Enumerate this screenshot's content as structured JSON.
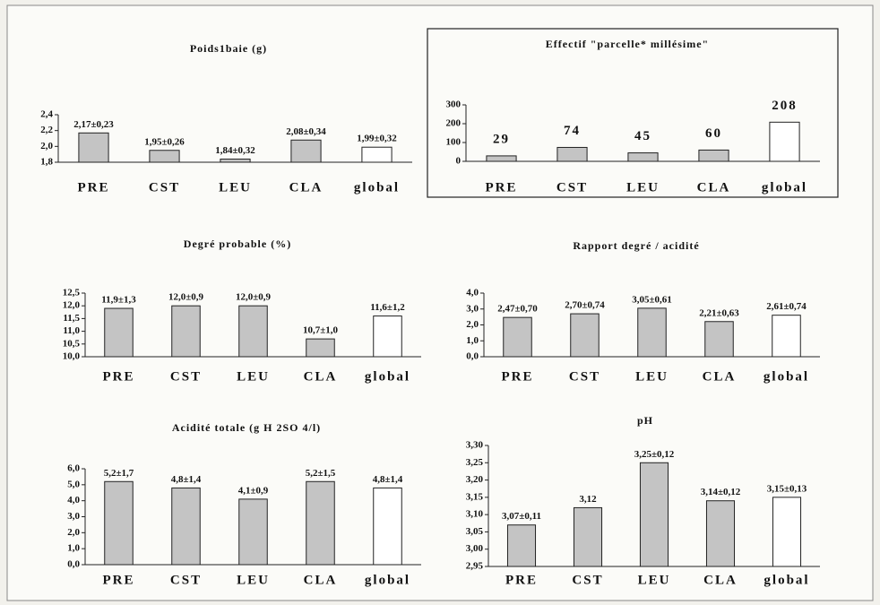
{
  "chart_data": [
    {
      "type": "bar",
      "title": "Poids1baie (g)",
      "categories": [
        "PRE",
        "CST",
        "LEU",
        "CLA",
        "global"
      ],
      "values": [
        2.17,
        1.95,
        1.84,
        2.08,
        1.99
      ],
      "value_labels": [
        "2,17±0,23",
        "1,95±0,26",
        "1,84±0,32",
        "2,08±0,34",
        "1,99±0,32"
      ],
      "colors": [
        "#c4c4c4",
        "#c4c4c4",
        "#c4c4c4",
        "#c4c4c4",
        "#ffffff"
      ],
      "ylim": [
        1.8,
        2.4
      ],
      "yticks": [
        {
          "value": 1.8,
          "label": "1,8"
        },
        {
          "value": 2.0,
          "label": "2,0"
        },
        {
          "value": 2.2,
          "label": "2,2"
        },
        {
          "value": 2.4,
          "label": "2,4"
        }
      ]
    },
    {
      "type": "bar",
      "title": "Effectif \"parcelle* millésime\"",
      "categories": [
        "PRE",
        "CST",
        "LEU",
        "CLA",
        "global"
      ],
      "values": [
        29,
        74,
        45,
        60,
        208
      ],
      "colors": [
        "#c4c4c4",
        "#c4c4c4",
        "#c4c4c4",
        "#c4c4c4",
        "#ffffff"
      ],
      "ylim": [
        0,
        300
      ],
      "yticks": [
        0,
        100,
        200,
        300
      ]
    },
    {
      "type": "bar",
      "title": "Degré probable (%)",
      "categories": [
        "PRE",
        "CST",
        "LEU",
        "CLA",
        "global"
      ],
      "values": [
        11.9,
        12.0,
        12.0,
        10.7,
        11.6
      ],
      "value_labels": [
        "11,9±1,3",
        "12,0±0,9",
        "12,0±0,9",
        "10,7±1,0",
        "11,6±1,2"
      ],
      "colors": [
        "#c4c4c4",
        "#c4c4c4",
        "#c4c4c4",
        "#c4c4c4",
        "#ffffff"
      ],
      "ylim": [
        10.0,
        12.5
      ],
      "yticks": [
        {
          "value": 10.0,
          "label": "10,0"
        },
        {
          "value": 10.5,
          "label": "10,5"
        },
        {
          "value": 11.0,
          "label": "11,0"
        },
        {
          "value": 11.5,
          "label": "11,5"
        },
        {
          "value": 12.0,
          "label": "12,0"
        },
        {
          "value": 12.5,
          "label": "12,5"
        }
      ]
    },
    {
      "type": "bar",
      "title": "Rapport degré / acidité",
      "categories": [
        "PRE",
        "CST",
        "LEU",
        "CLA",
        "global"
      ],
      "values": [
        2.47,
        2.7,
        3.05,
        2.21,
        2.61
      ],
      "value_labels": [
        "2,47±0,70",
        "2,70±0,74",
        "3,05±0,61",
        "2,21±0,63",
        "2,61±0,74"
      ],
      "colors": [
        "#c4c4c4",
        "#c4c4c4",
        "#c4c4c4",
        "#c4c4c4",
        "#ffffff"
      ],
      "ylim": [
        0,
        4
      ],
      "yticks": [
        {
          "value": 0,
          "label": "0,0"
        },
        {
          "value": 1,
          "label": "1,0"
        },
        {
          "value": 2,
          "label": "2,0"
        },
        {
          "value": 3,
          "label": "3,0"
        },
        {
          "value": 4,
          "label": "4,0"
        }
      ]
    },
    {
      "type": "bar",
      "title": "Acidité totale (g H 2SO 4/l)",
      "categories": [
        "PRE",
        "CST",
        "LEU",
        "CLA",
        "global"
      ],
      "values": [
        5.2,
        4.8,
        4.1,
        5.2,
        4.8
      ],
      "value_labels": [
        "5,2±1,7",
        "4,8±1,4",
        "4,1±0,9",
        "5,2±1,5",
        "4,8±1,4"
      ],
      "colors": [
        "#c4c4c4",
        "#c4c4c4",
        "#c4c4c4",
        "#c4c4c4",
        "#ffffff"
      ],
      "ylim": [
        0,
        6
      ],
      "yticks": [
        {
          "value": 0,
          "label": "0,0"
        },
        {
          "value": 1,
          "label": "1,0"
        },
        {
          "value": 2,
          "label": "2,0"
        },
        {
          "value": 3,
          "label": "3,0"
        },
        {
          "value": 4,
          "label": "4,0"
        },
        {
          "value": 5,
          "label": "5,0"
        },
        {
          "value": 6,
          "label": "6,0"
        }
      ]
    },
    {
      "type": "bar",
      "title": "pH",
      "categories": [
        "PRE",
        "CST",
        "LEU",
        "CLA",
        "global"
      ],
      "values": [
        3.07,
        3.12,
        3.25,
        3.14,
        3.15
      ],
      "value_labels": [
        "3,07±0,11",
        "3,12",
        "3,25±0,12",
        "3,14±0,12",
        "3,15±0,13"
      ],
      "colors": [
        "#c4c4c4",
        "#c4c4c4",
        "#c4c4c4",
        "#c4c4c4",
        "#ffffff"
      ],
      "ylim": [
        2.95,
        3.3
      ],
      "yticks": [
        {
          "value": 2.95,
          "label": "2,95"
        },
        {
          "value": 3.0,
          "label": "3,00"
        },
        {
          "value": 3.05,
          "label": "3,05"
        },
        {
          "value": 3.1,
          "label": "3,10"
        },
        {
          "value": 3.15,
          "label": "3,15"
        },
        {
          "value": 3.2,
          "label": "3,20"
        },
        {
          "value": 3.25,
          "label": "3,25"
        },
        {
          "value": 3.3,
          "label": "3,30"
        }
      ]
    }
  ]
}
